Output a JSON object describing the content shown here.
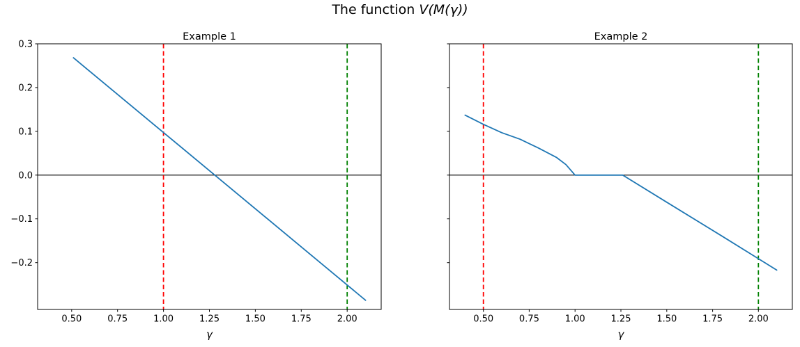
{
  "figure": {
    "title_prefix": "The function ",
    "title_math": "V(M(γ))",
    "background": "#ffffff"
  },
  "chart_data": [
    {
      "type": "line",
      "title": "Example 1",
      "xlabel": "γ",
      "ylabel": "",
      "grid": false,
      "legend": null,
      "xlim": [
        0.315,
        2.185
      ],
      "ylim": [
        -0.307,
        0.3
      ],
      "x_ticks": {
        "values": [
          0.5,
          0.75,
          1.0,
          1.25,
          1.5,
          1.75,
          2.0
        ],
        "labels": [
          "0.50",
          "0.75",
          "1.00",
          "1.25",
          "1.50",
          "1.75",
          "2.00"
        ]
      },
      "y_ticks": {
        "values": [
          0.3,
          0.2,
          0.1,
          0.0,
          -0.1,
          -0.2
        ],
        "labels": [
          "0.3",
          "0.2",
          "0.1",
          "0.0",
          "−0.1",
          "−0.2"
        ],
        "show_labels": true
      },
      "series": [
        {
          "name": "V(M(gamma))",
          "color": "#1f77b4",
          "points": [
            [
              0.51,
              0.268
            ],
            [
              2.1,
              -0.286
            ]
          ]
        }
      ],
      "vlines": [
        {
          "x": 1.0,
          "color": "#ff0000",
          "style": "dashed",
          "name": "red"
        },
        {
          "x": 2.0,
          "color": "#008000",
          "style": "dashed",
          "name": "green"
        }
      ],
      "hlines": [
        {
          "y": 0.0,
          "color": "#000000",
          "style": "solid"
        }
      ]
    },
    {
      "type": "line",
      "title": "Example 2",
      "xlabel": "γ",
      "ylabel": "",
      "grid": false,
      "legend": null,
      "xlim": [
        0.315,
        2.185
      ],
      "ylim": [
        -0.307,
        0.3
      ],
      "x_ticks": {
        "values": [
          0.5,
          0.75,
          1.0,
          1.25,
          1.5,
          1.75,
          2.0
        ],
        "labels": [
          "0.50",
          "0.75",
          "1.00",
          "1.25",
          "1.50",
          "1.75",
          "2.00"
        ]
      },
      "y_ticks": {
        "values": [
          0.3,
          0.2,
          0.1,
          0.0,
          -0.1,
          -0.2
        ],
        "labels": [
          "0.3",
          "0.2",
          "0.1",
          "0.0",
          "−0.1",
          "−0.2"
        ],
        "show_labels": false
      },
      "series": [
        {
          "name": "V(M(gamma))",
          "color": "#1f77b4",
          "points": [
            [
              0.4,
              0.137
            ],
            [
              0.5,
              0.116
            ],
            [
              0.6,
              0.097
            ],
            [
              0.7,
              0.082
            ],
            [
              0.8,
              0.062
            ],
            [
              0.9,
              0.04
            ],
            [
              0.95,
              0.024
            ],
            [
              1.0,
              0.0
            ],
            [
              1.26,
              0.0
            ],
            [
              1.5,
              -0.062
            ],
            [
              1.8,
              -0.139
            ],
            [
              2.0,
              -0.191
            ],
            [
              2.1,
              -0.217
            ]
          ]
        }
      ],
      "vlines": [
        {
          "x": 0.5,
          "color": "#ff0000",
          "style": "dashed",
          "name": "red"
        },
        {
          "x": 2.0,
          "color": "#008000",
          "style": "dashed",
          "name": "green"
        }
      ],
      "hlines": [
        {
          "y": 0.0,
          "color": "#000000",
          "style": "solid"
        }
      ]
    }
  ]
}
